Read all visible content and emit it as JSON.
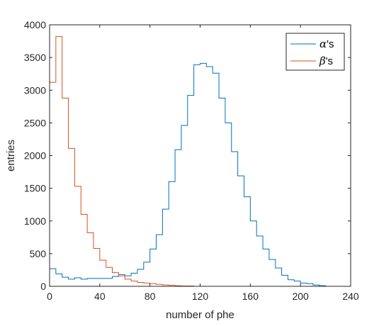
{
  "chart_data": {
    "type": "line",
    "title": "",
    "xlabel": "number of phe",
    "ylabel": "entries",
    "xlim": [
      0,
      240
    ],
    "ylim": [
      0,
      4000
    ],
    "xticks": [
      0,
      40,
      80,
      120,
      160,
      200,
      240
    ],
    "yticks": [
      0,
      500,
      1000,
      1500,
      2000,
      2500,
      3000,
      3500,
      4000
    ],
    "grid": false,
    "legend_position": "top-right",
    "bin_edges": [
      0,
      5,
      10,
      15,
      20,
      25,
      30,
      35,
      40,
      45,
      50,
      55,
      60,
      65,
      70,
      75,
      80,
      85,
      90,
      95,
      100,
      105,
      110,
      115,
      120,
      125,
      130,
      135,
      140,
      145,
      150,
      155,
      160,
      165,
      170,
      175,
      180,
      185,
      190,
      195,
      200,
      205,
      210,
      215,
      220,
      225,
      230,
      235,
      240
    ],
    "series": [
      {
        "name": "α's",
        "legend_symbol": "α",
        "legend_suffix": "'s",
        "color": "#0072BD",
        "values": [
          270,
          190,
          140,
          110,
          130,
          110,
          120,
          120,
          120,
          120,
          150,
          180,
          160,
          200,
          260,
          370,
          570,
          790,
          1180,
          1600,
          2090,
          2460,
          2920,
          3390,
          3410,
          3360,
          3260,
          2880,
          2500,
          2060,
          1690,
          1370,
          1000,
          770,
          570,
          410,
          280,
          170,
          100,
          80,
          50,
          40,
          20,
          10,
          0,
          0,
          0,
          0
        ]
      },
      {
        "name": "β's",
        "legend_symbol": "β",
        "legend_suffix": "'s",
        "color": "#D95319",
        "values": [
          3120,
          3820,
          2880,
          2110,
          1530,
          1100,
          820,
          580,
          400,
          290,
          210,
          160,
          110,
          80,
          60,
          50,
          40,
          30,
          20,
          15,
          10,
          5,
          5,
          0,
          0,
          0,
          0,
          0,
          0,
          0,
          0,
          0,
          0,
          0,
          0,
          0,
          0,
          0,
          0,
          0,
          0,
          0,
          0,
          0,
          0,
          0,
          0,
          0
        ]
      }
    ]
  }
}
